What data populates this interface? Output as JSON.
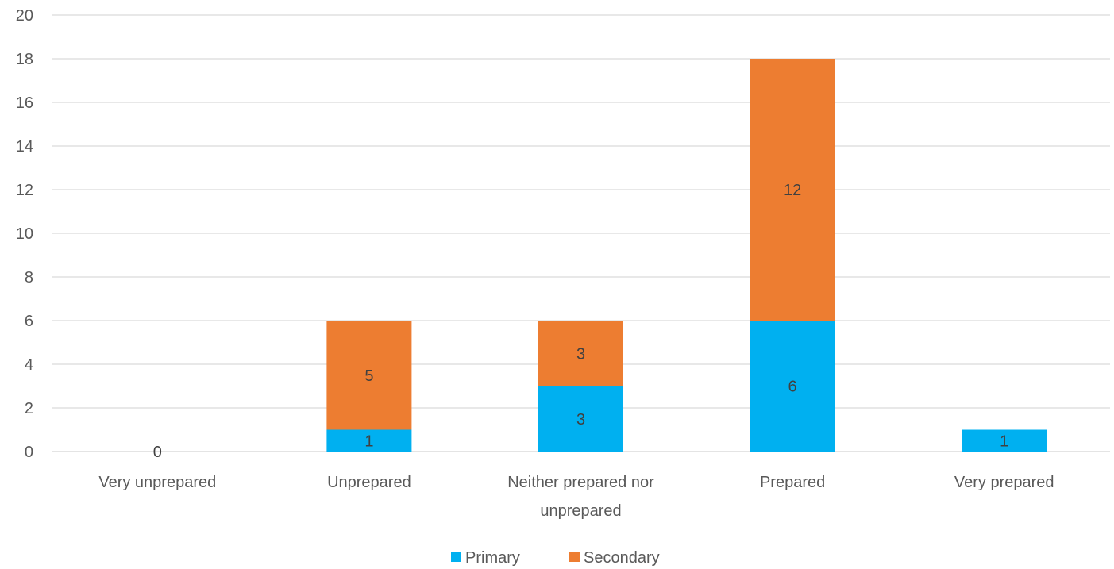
{
  "chart_data": {
    "type": "bar",
    "stacked": true,
    "categories": [
      "Very unprepared",
      "Unprepared",
      "Neither prepared nor unprepared",
      "Prepared",
      "Very prepared"
    ],
    "category_lines": [
      [
        "Very unprepared"
      ],
      [
        "Unprepared"
      ],
      [
        "Neither prepared nor",
        "unprepared"
      ],
      [
        "Prepared"
      ],
      [
        "Very prepared"
      ]
    ],
    "series": [
      {
        "name": "Primary",
        "values": [
          0,
          1,
          3,
          6,
          1
        ],
        "color": "#00B0F0"
      },
      {
        "name": "Secondary",
        "values": [
          0,
          5,
          3,
          12,
          0
        ],
        "color": "#ED7D31"
      }
    ],
    "data_labels": [
      {
        "category": 0,
        "series": 0,
        "text": "0"
      },
      {
        "category": 1,
        "series": 0,
        "text": "1"
      },
      {
        "category": 1,
        "series": 1,
        "text": "5"
      },
      {
        "category": 2,
        "series": 0,
        "text": "3"
      },
      {
        "category": 2,
        "series": 1,
        "text": "3"
      },
      {
        "category": 3,
        "series": 0,
        "text": "6"
      },
      {
        "category": 3,
        "series": 1,
        "text": "12"
      },
      {
        "category": 4,
        "series": 0,
        "text": "1"
      }
    ],
    "ylim": [
      0,
      20
    ],
    "yticks": [
      0,
      2,
      4,
      6,
      8,
      10,
      12,
      14,
      16,
      18,
      20
    ],
    "grid": true,
    "legend_position": "bottom"
  }
}
